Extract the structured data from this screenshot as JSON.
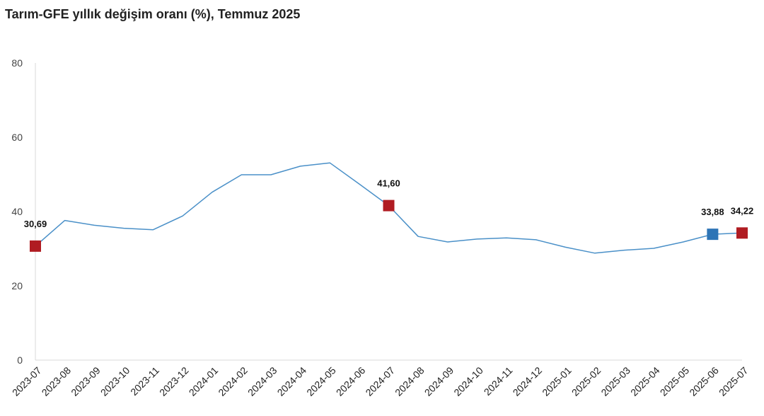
{
  "chart_data": {
    "type": "line",
    "title": "Tarım-GFE yıllık değişim oranı (%), Temmuz 2025",
    "xlabel": "",
    "ylabel": "",
    "ylim": [
      0,
      80
    ],
    "yticks": [
      "0",
      "20",
      "40",
      "60",
      "80"
    ],
    "grid": false,
    "categories": [
      "2023-07",
      "2023-08",
      "2023-09",
      "2023-10",
      "2023-11",
      "2023-12",
      "2024-01",
      "2024-02",
      "2024-03",
      "2024-04",
      "2024-05",
      "2024-06",
      "2024-07",
      "2024-08",
      "2024-09",
      "2024-10",
      "2024-11",
      "2024-12",
      "2025-01",
      "2025-02",
      "2025-03",
      "2025-04",
      "2025-05",
      "2025-06",
      "2025-07"
    ],
    "series": [
      {
        "values": [
          30.69,
          37.6,
          36.3,
          35.5,
          35.1,
          38.8,
          45.2,
          49.9,
          49.9,
          52.2,
          53.1,
          47.4,
          41.6,
          33.3,
          31.8,
          32.6,
          32.9,
          32.4,
          30.4,
          28.8,
          29.6,
          30.1,
          31.8,
          33.88,
          34.22
        ],
        "color": "#4a90c8"
      }
    ],
    "highlights": [
      {
        "category": "2023-07",
        "value": 30.69,
        "label": "30,69",
        "color": "#b01c22"
      },
      {
        "category": "2024-07",
        "value": 41.6,
        "label": "41,60",
        "color": "#b01c22"
      },
      {
        "category": "2025-06",
        "value": 33.88,
        "label": "33,88",
        "color": "#2e75b6"
      },
      {
        "category": "2025-07",
        "value": 34.22,
        "label": "34,22",
        "color": "#b01c22"
      }
    ],
    "axis_color": "#d9d9d9"
  }
}
